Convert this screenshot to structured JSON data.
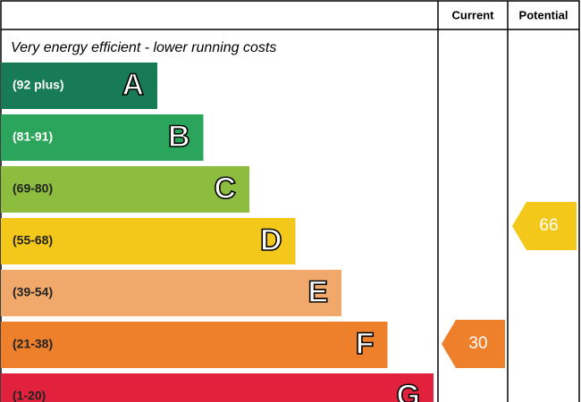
{
  "header": {
    "current": "Current",
    "potential": "Potential"
  },
  "subtitle": "Very energy efficient - lower running costs",
  "bands": [
    {
      "range": "(92 plus)",
      "letter": "A",
      "color": "#177b56"
    },
    {
      "range": "(81-91)",
      "letter": "B",
      "color": "#2ba55b"
    },
    {
      "range": "(69-80)",
      "letter": "C",
      "color": "#8dbd3f"
    },
    {
      "range": "(55-68)",
      "letter": "D",
      "color": "#f3c81b"
    },
    {
      "range": "(39-54)",
      "letter": "E",
      "color": "#f1a96b"
    },
    {
      "range": "(21-38)",
      "letter": "F",
      "color": "#ee7f2b"
    },
    {
      "range": "(1-20)",
      "letter": "G",
      "color": "#e2223c"
    }
  ],
  "current": 30,
  "potential": 66
}
